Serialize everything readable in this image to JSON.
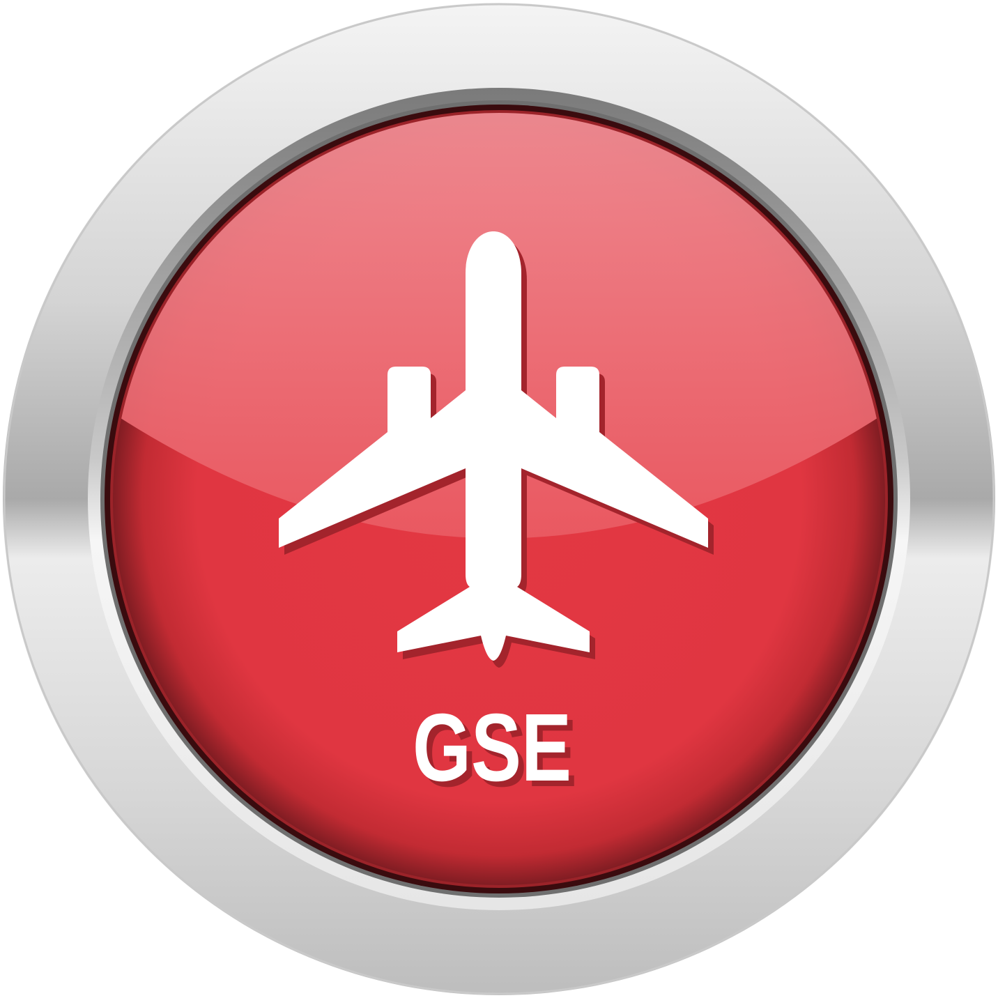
{
  "button": {
    "label": "GSE",
    "icon": "airplane-icon"
  },
  "colors": {
    "face_top": "#ee8088",
    "face_main": "#e03641",
    "face_edge": "#8e2228",
    "bezel_light": "#f2f2f2",
    "bezel_dark": "#8a8a8a",
    "icon_fill": "#ffffff",
    "icon_shadow": "#a8262e"
  }
}
